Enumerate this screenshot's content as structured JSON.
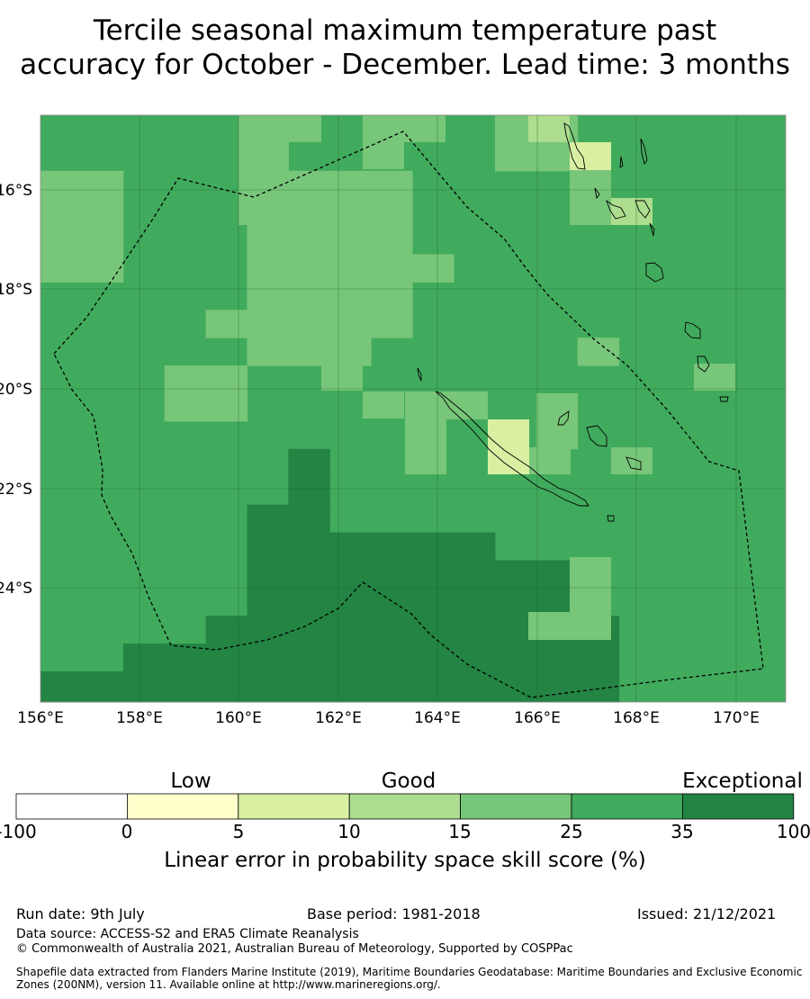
{
  "title": {
    "line1": "Tercile seasonal maximum temperature past",
    "line2": "accuracy for October - December. Lead time: 3 months"
  },
  "map": {
    "lon_labels": [
      "156°E",
      "158°E",
      "160°E",
      "162°E",
      "164°E",
      "166°E",
      "168°E",
      "170°E"
    ],
    "lat_labels": [
      "16°S",
      "18°S",
      "20°S",
      "22°S",
      "24°S"
    ],
    "lon_range": [
      156,
      171
    ],
    "lat_range": [
      -26,
      -14.5
    ],
    "grid_resolution_deg": 0.83,
    "colors": {
      "c0_5": "#ffffcc",
      "c5_10": "#d9f0a3",
      "c10_15": "#addd8e",
      "c15_25": "#78c679",
      "c25_35": "#41ab5d",
      "c35_100": "#238443"
    }
  },
  "legend": {
    "category_labels": [
      "Low",
      "Good",
      "Exceptional"
    ],
    "ticks": [
      "-100",
      "0",
      "5",
      "10",
      "15",
      "25",
      "35",
      "100"
    ],
    "bins": [
      {
        "range": "-100 to 0",
        "color": "#ffffff"
      },
      {
        "range": "0 to 5",
        "color": "#ffffcc"
      },
      {
        "range": "5 to 10",
        "color": "#d9f0a3"
      },
      {
        "range": "10 to 15",
        "color": "#addd8e"
      },
      {
        "range": "15 to 25",
        "color": "#78c679"
      },
      {
        "range": "25 to 35",
        "color": "#41ab5d"
      },
      {
        "range": "35 to 100",
        "color": "#238443"
      }
    ],
    "title": "Linear error in probability space skill score (%)"
  },
  "footer": {
    "run_date": "Run date: 9th July",
    "base_period": "Base period: 1981-2018",
    "issued": "Issued: 21/12/2021",
    "data_source": "Data source: ACCESS-S2 and ERA5 Climate Reanalysis",
    "copyright": "© Commonwealth of Australia 2021, Australian Bureau of Meteorology, Supported by COSPPac",
    "shapefile_line1": "Shapefile data extracted from Flanders Marine Institute (2019), Maritime Boundaries Geodatabase: Maritime Boundaries and Exclusive Economic",
    "shapefile_line2": "Zones (200NM), version 11. Available online at http://www.marineregions.org/."
  }
}
